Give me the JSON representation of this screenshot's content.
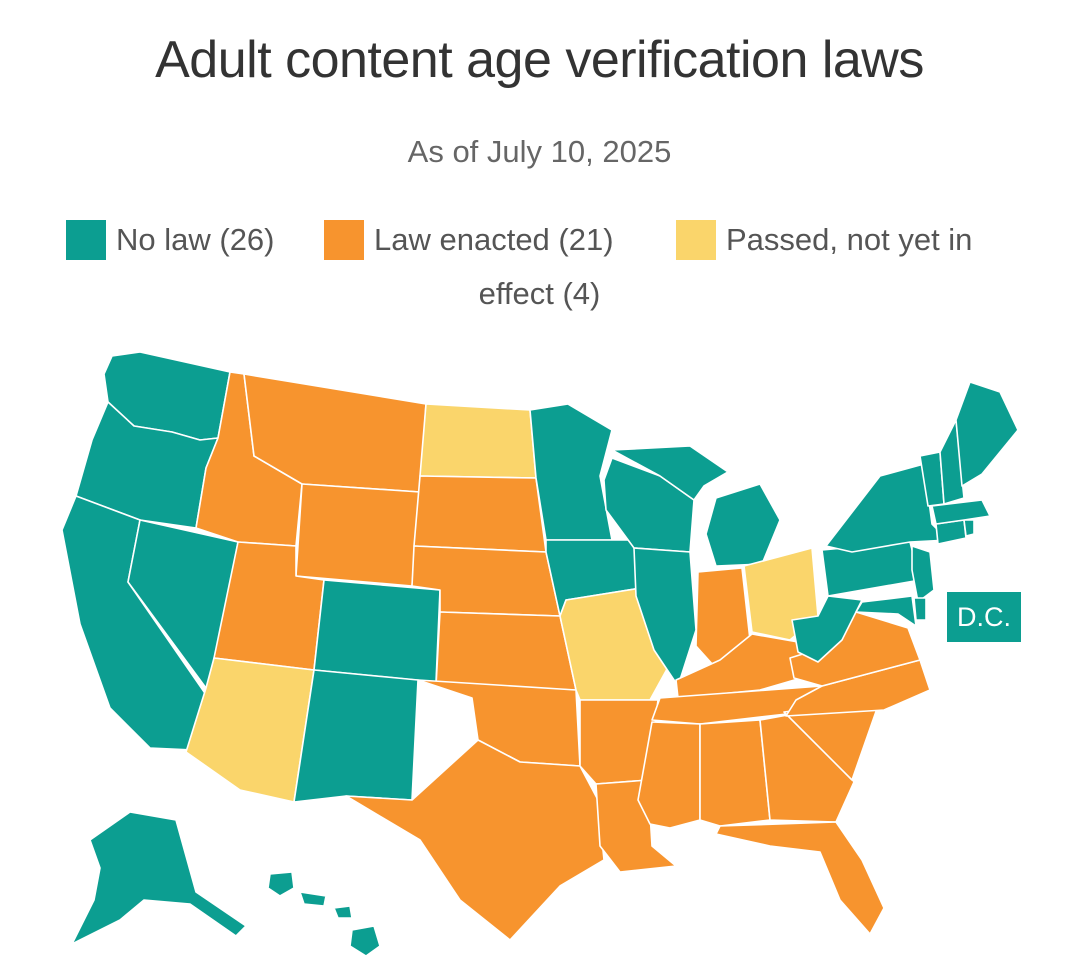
{
  "title": "Adult content age verification laws",
  "subtitle": "As of July 10, 2025",
  "colors": {
    "no_law": "#0C9E91",
    "law_enacted": "#F7942E",
    "passed": "#FAD56B"
  },
  "legend": {
    "no_law": "No law (26)",
    "law_enacted": "Law enacted (21)",
    "passed_part1": "Passed, not yet in",
    "passed_part2": "effect (4)"
  },
  "dc_label": "D.C.",
  "map_data": {
    "no_law": [
      "WA",
      "OR",
      "CA",
      "NV",
      "CO",
      "NM",
      "MN",
      "IA",
      "WI",
      "IL",
      "MI",
      "PA",
      "NY",
      "ME",
      "NH",
      "VT",
      "MA",
      "RI",
      "CT",
      "NJ",
      "DE",
      "MD",
      "WV",
      "AK",
      "HI",
      "DC"
    ],
    "law_enacted": [
      "ID",
      "MT",
      "UT",
      "WY",
      "SD",
      "NE",
      "KS",
      "OK",
      "TX",
      "AR",
      "LA",
      "MS",
      "AL",
      "GA",
      "FL",
      "SC",
      "NC",
      "VA",
      "TN",
      "KY",
      "IN"
    ],
    "passed": [
      "AZ",
      "ND",
      "MO",
      "OH"
    ]
  }
}
